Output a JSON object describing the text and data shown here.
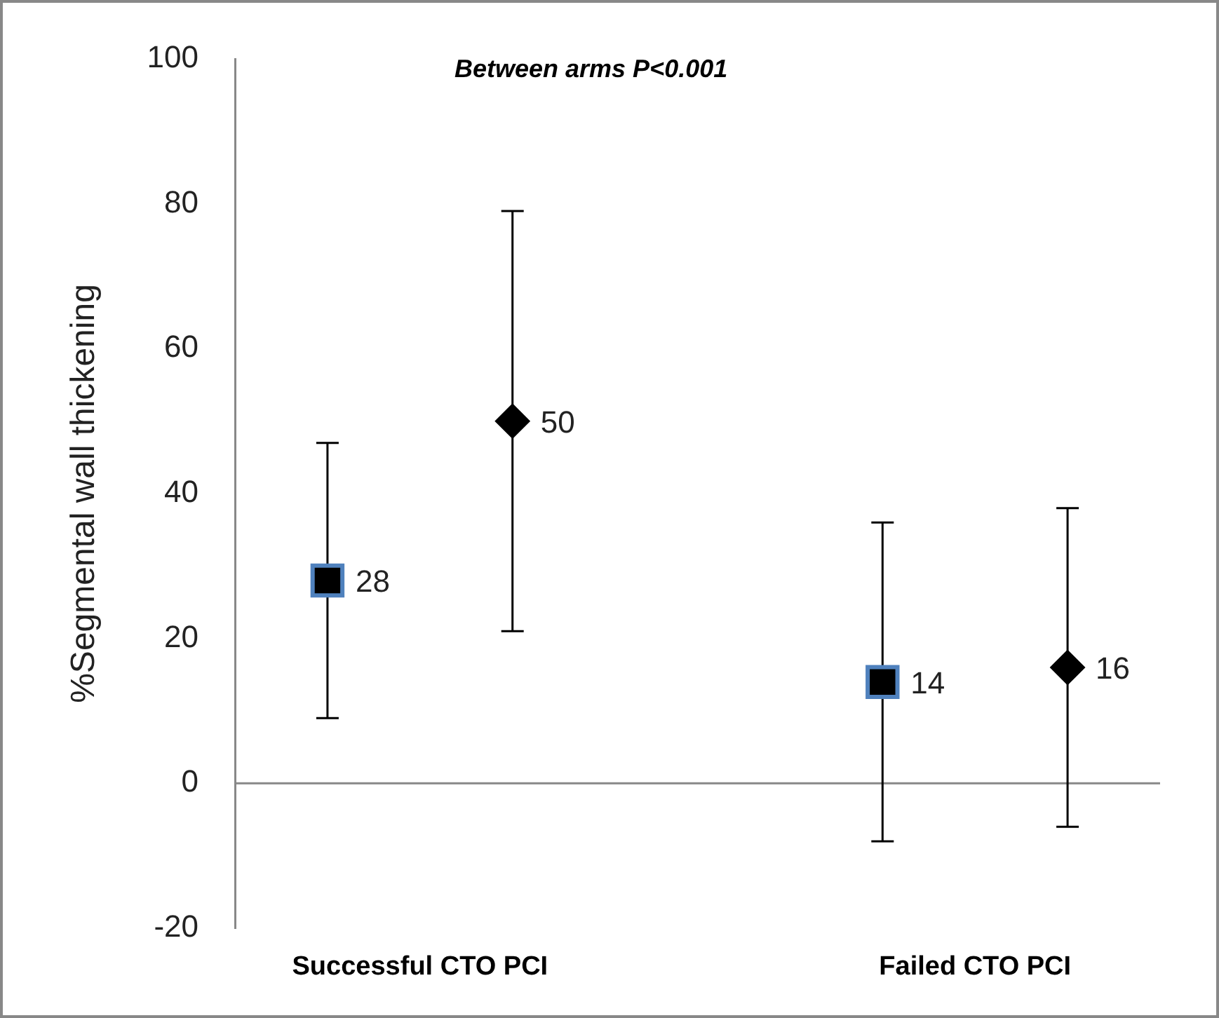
{
  "chart_data": {
    "type": "scatter",
    "ylabel": "%Segmental wall thickening",
    "categories": [
      null,
      null,
      null,
      null,
      null
    ],
    "series": [
      {
        "marker": "square",
        "color": "#000000",
        "values": [
          28,
          null,
          null,
          14,
          null
        ],
        "errors": [
          [
            9,
            47
          ],
          null,
          null,
          [
            -8,
            36
          ],
          null
        ]
      },
      {
        "marker": "diamond",
        "color": "#000000",
        "values": [
          null,
          50,
          null,
          null,
          16
        ],
        "errors": [
          null,
          [
            21,
            79
          ],
          null,
          null,
          [
            -6,
            38
          ]
        ]
      }
    ],
    "ylim": [
      -20,
      100
    ],
    "yticks": [
      -20,
      0,
      20,
      40,
      60,
      80,
      100
    ],
    "ref_lines": [
      {
        "axis": "y",
        "value": 0,
        "color": "#888888"
      }
    ],
    "data_labels": true,
    "grid": false,
    "legend": false,
    "annotations": [
      "Between arms P<0.001",
      "Successful CTO PCI",
      "Failed CTO PCI"
    ]
  }
}
